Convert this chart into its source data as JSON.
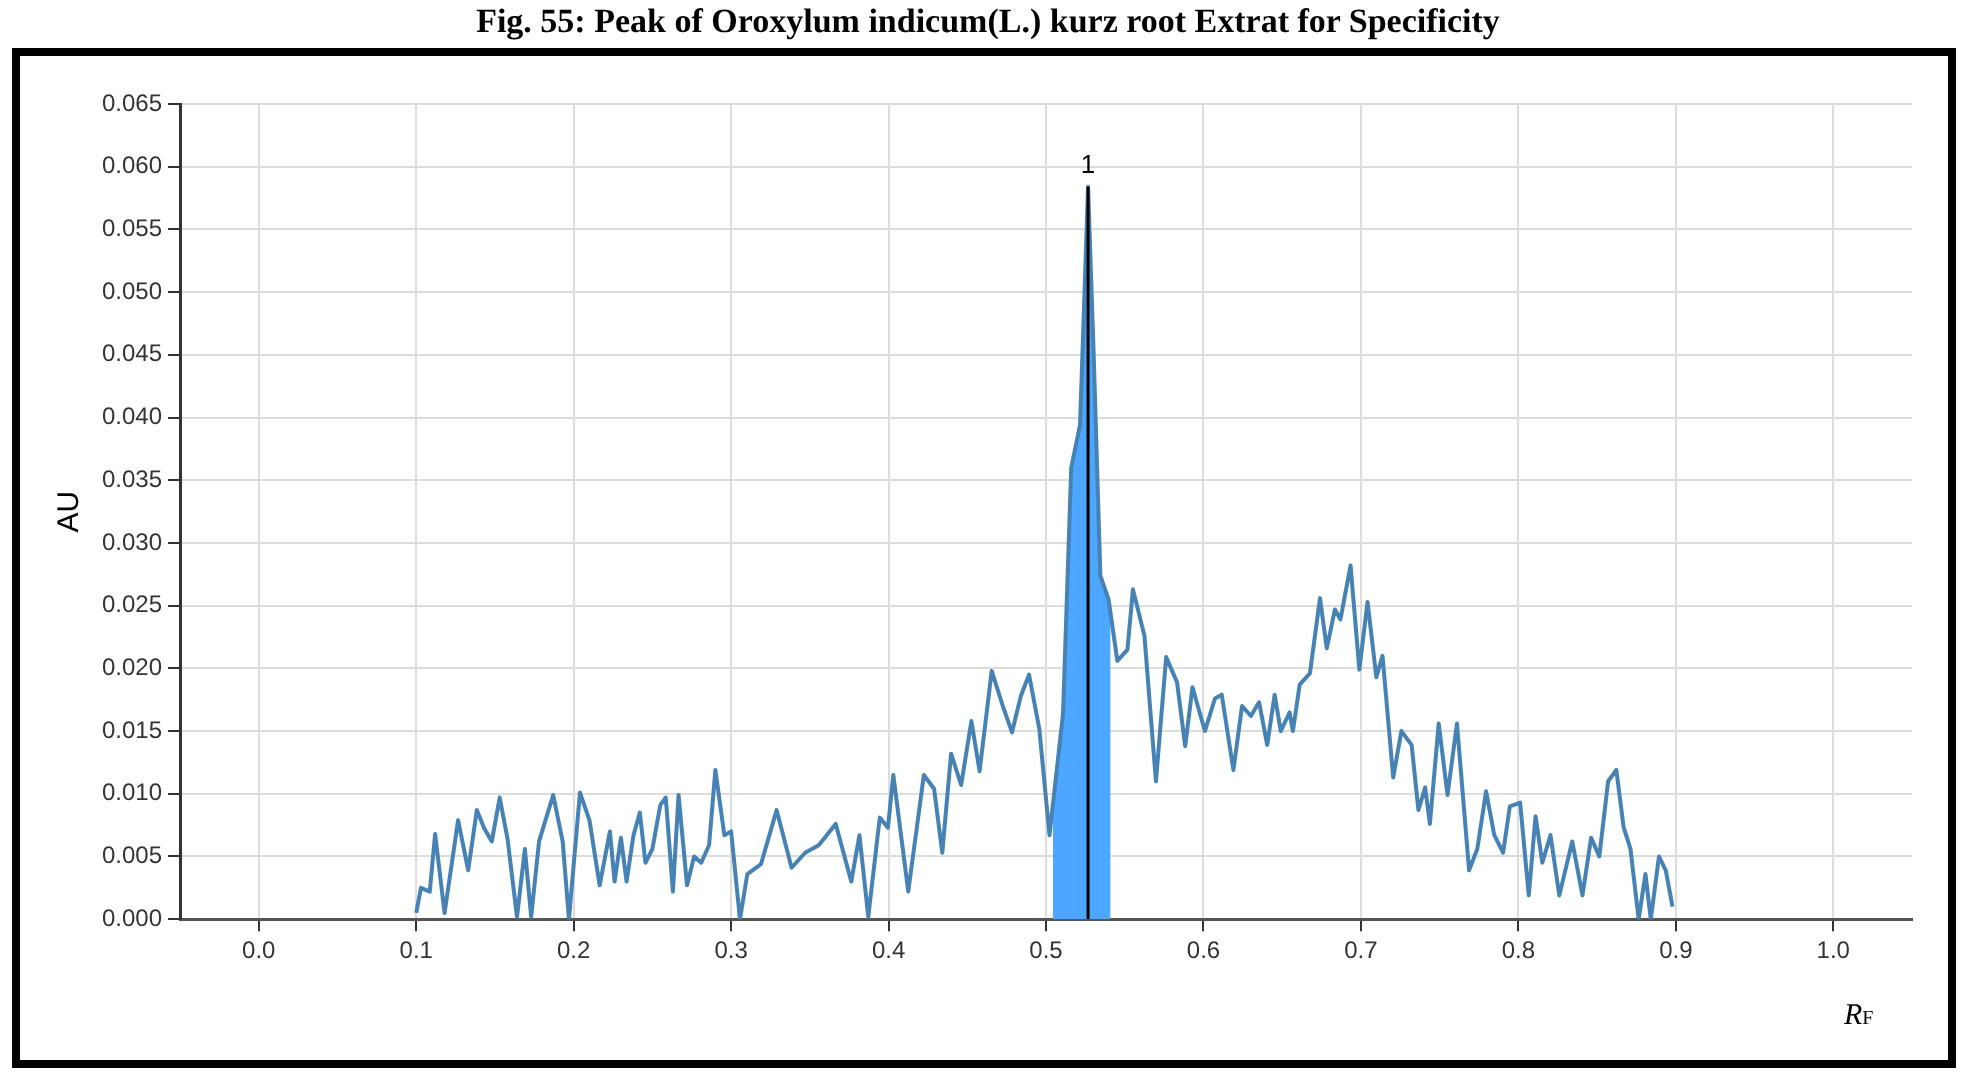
{
  "chart_data": {
    "type": "line",
    "title": "Fig. 55: Peak of Oroxylum indicum(L.) kurz root Extrat for Specificity",
    "xlabel": "R$_{F}$",
    "ylabel": "AU",
    "grid": true,
    "legend": false,
    "marker": "none",
    "line_style": "solid",
    "xlim": [
      -0.05,
      1.05
    ],
    "xticks": [
      {
        "value": 0,
        "label": "0.0"
      },
      {
        "value": 0.1,
        "label": "0.1"
      },
      {
        "value": 0.2,
        "label": "0.2"
      },
      {
        "value": 0.3,
        "label": "0.3"
      },
      {
        "value": 0.4,
        "label": "0.4"
      },
      {
        "value": 0.5,
        "label": "0.5"
      },
      {
        "value": 0.6,
        "label": "0.6"
      },
      {
        "value": 0.7,
        "label": "0.7"
      },
      {
        "value": 0.8,
        "label": "0.8"
      },
      {
        "value": 0.9,
        "label": "0.9"
      },
      {
        "value": 1,
        "label": "1.0"
      }
    ],
    "ylim": [
      0,
      0.065
    ],
    "yticks": [
      {
        "value": 0,
        "label": "0.000"
      },
      {
        "value": 0.005,
        "label": "0.005"
      },
      {
        "value": 0.01,
        "label": "0.010"
      },
      {
        "value": 0.015,
        "label": "0.015"
      },
      {
        "value": 0.02,
        "label": "0.020"
      },
      {
        "value": 0.025,
        "label": "0.025"
      },
      {
        "value": 0.03,
        "label": "0.030"
      },
      {
        "value": 0.035,
        "label": "0.035"
      },
      {
        "value": 0.04,
        "label": "0.040"
      },
      {
        "value": 0.045,
        "label": "0.045"
      },
      {
        "value": 0.05,
        "label": "0.050"
      },
      {
        "value": 0.055,
        "label": "0.055"
      },
      {
        "value": 0.06,
        "label": "0.060"
      },
      {
        "value": 0.065,
        "label": "0.065"
      }
    ],
    "annotations": [
      {
        "text": "1",
        "x": 0.5267,
        "y": 0.0584
      }
    ],
    "series": [
      {
        "type": "area",
        "color": "#4da6ff",
        "x": [
          0.5043,
          0.5108,
          0.516,
          0.5216,
          0.5267,
          0.5302,
          0.5345,
          0.5397,
          0.541
        ],
        "values": [
          0.009,
          0.0164,
          0.036,
          0.0394,
          0.0584,
          0.0453,
          0.0274,
          0.0255,
          0.025
        ]
      },
      {
        "color": "#000000",
        "x": [
          0.5267,
          0.5267
        ],
        "values": [
          0,
          0.0584
        ]
      },
      {
        "color": "#4682b4",
        "x": [
          0.1,
          0.103,
          0.1086,
          0.112,
          0.118,
          0.1266,
          0.133,
          0.1385,
          0.143,
          0.148,
          0.153,
          0.158,
          0.164,
          0.169,
          0.173,
          0.178,
          0.187,
          0.193,
          0.197,
          0.204,
          0.21,
          0.2165,
          0.223,
          0.226,
          0.23,
          0.2336,
          0.238,
          0.242,
          0.2456,
          0.25,
          0.255,
          0.2585,
          0.263,
          0.2666,
          0.272,
          0.2765,
          0.281,
          0.286,
          0.29,
          0.2957,
          0.3,
          0.3056,
          0.3103,
          0.319,
          0.3289,
          0.3384,
          0.347,
          0.3556,
          0.3664,
          0.3763,
          0.3815,
          0.3871,
          0.3944,
          0.3996,
          0.403,
          0.4125,
          0.4224,
          0.4289,
          0.4341,
          0.4397,
          0.4461,
          0.4526,
          0.4578,
          0.4655,
          0.4728,
          0.4784,
          0.484,
          0.4892,
          0.4957,
          0.5022,
          0.5108,
          0.516,
          0.5216,
          0.5267,
          0.5302,
          0.5345,
          0.5397,
          0.5453,
          0.5517,
          0.5552,
          0.5625,
          0.5698,
          0.5763,
          0.5832,
          0.5884,
          0.593,
          0.6009,
          0.6073,
          0.6116,
          0.619,
          0.6245,
          0.6301,
          0.6353,
          0.6405,
          0.6452,
          0.6491,
          0.6547,
          0.6568,
          0.6611,
          0.6676,
          0.674,
          0.6783,
          0.6835,
          0.687,
          0.6934,
          0.699,
          0.7042,
          0.7098,
          0.7137,
          0.7205,
          0.7257,
          0.7322,
          0.7365,
          0.7408,
          0.7438,
          0.7494,
          0.755,
          0.761,
          0.7687,
          0.7739,
          0.7795,
          0.7847,
          0.7903,
          0.7946,
          0.8011,
          0.8066,
          0.8109,
          0.8152,
          0.8204,
          0.826,
          0.8342,
          0.8407,
          0.8462,
          0.8514,
          0.857,
          0.8622,
          0.8669,
          0.8712,
          0.8764,
          0.8807,
          0.8841,
          0.8893,
          0.8936,
          0.8979
        ],
        "values": [
          0.0005,
          0.0025,
          0.0022,
          0.0068,
          0.0005,
          0.0079,
          0.0039,
          0.0087,
          0.0073,
          0.0062,
          0.0097,
          0.0064,
          0.0002,
          0.0056,
          0.0002,
          0.0062,
          0.0099,
          0.0062,
          0,
          0.0101,
          0.0079,
          0.0027,
          0.007,
          0.003,
          0.0065,
          0.003,
          0.0067,
          0.0085,
          0.0045,
          0.0056,
          0.0091,
          0.0097,
          0.0022,
          0.0099,
          0.0027,
          0.005,
          0.0045,
          0.0059,
          0.0119,
          0.0067,
          0.007,
          0,
          0.0036,
          0.0044,
          0.0087,
          0.0041,
          0.0053,
          0.0059,
          0.0076,
          0.003,
          0.0067,
          0.0002,
          0.0081,
          0.0073,
          0.0115,
          0.0022,
          0.0115,
          0.0104,
          0.0053,
          0.0132,
          0.0107,
          0.0158,
          0.0118,
          0.0198,
          0.0169,
          0.0149,
          0.0178,
          0.0195,
          0.0152,
          0.0067,
          0.0164,
          0.036,
          0.0394,
          0.0584,
          0.0453,
          0.0274,
          0.0255,
          0.0206,
          0.0215,
          0.0263,
          0.0226,
          0.011,
          0.0209,
          0.0189,
          0.0138,
          0.0185,
          0.015,
          0.0176,
          0.0179,
          0.0119,
          0.017,
          0.0162,
          0.0173,
          0.0139,
          0.0179,
          0.015,
          0.0165,
          0.015,
          0.0187,
          0.0196,
          0.0256,
          0.0216,
          0.0247,
          0.0239,
          0.0282,
          0.0199,
          0.0253,
          0.0193,
          0.021,
          0.0113,
          0.015,
          0.0139,
          0.0087,
          0.0105,
          0.0076,
          0.0156,
          0.0099,
          0.0156,
          0.0039,
          0.0056,
          0.0102,
          0.0067,
          0.0053,
          0.009,
          0.0093,
          0.0019,
          0.0082,
          0.0045,
          0.0067,
          0.0019,
          0.0062,
          0.0019,
          0.0065,
          0.005,
          0.011,
          0.0119,
          0.0073,
          0.0056,
          0,
          0.0036,
          0,
          0.005,
          0.0039,
          0.001
        ]
      }
    ]
  }
}
